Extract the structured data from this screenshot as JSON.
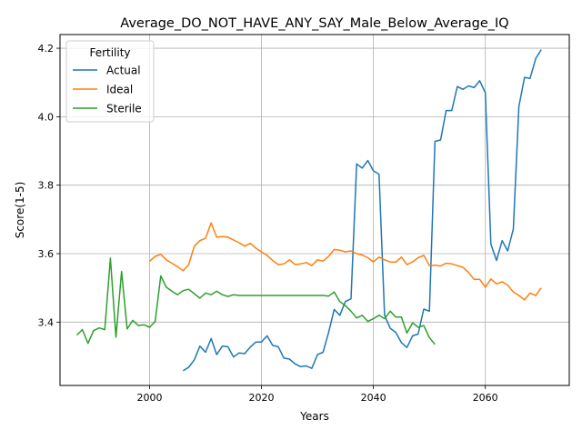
{
  "chart_data": {
    "type": "line",
    "title": "Average_DO_NOT_HAVE_ANY_SAY_Male_Below_Average_IQ",
    "xlabel": "Years",
    "ylabel": "Score(1-5)",
    "xlim": [
      1984,
      2075
    ],
    "ylim": [
      3.215,
      4.24
    ],
    "x_ticks": [
      2000,
      2020,
      2040,
      2060
    ],
    "y_ticks": [
      3.4,
      3.6,
      3.8,
      4.0,
      4.2
    ],
    "grid": true,
    "legend": {
      "title": "Fertility",
      "position": "upper-left"
    },
    "series": [
      {
        "name": "Actual",
        "color": "#1f77b4",
        "x": [
          2006,
          2007,
          2008,
          2009,
          2010,
          2011,
          2012,
          2013,
          2014,
          2015,
          2016,
          2017,
          2018,
          2019,
          2020,
          2021,
          2022,
          2023,
          2024,
          2025,
          2026,
          2027,
          2028,
          2029,
          2030,
          2031,
          2032,
          2033,
          2034,
          2035,
          2036,
          2037,
          2038,
          2039,
          2040,
          2041,
          2042,
          2043,
          2044,
          2045,
          2046,
          2047,
          2048,
          2049,
          2050,
          2051,
          2052,
          2053,
          2054,
          2055,
          2056,
          2057,
          2058,
          2059,
          2060,
          2061,
          2062,
          2063,
          2064,
          2065,
          2066,
          2067,
          2068,
          2069,
          2070
        ],
        "y": [
          3.258,
          3.268,
          3.29,
          3.33,
          3.312,
          3.352,
          3.305,
          3.33,
          3.328,
          3.298,
          3.31,
          3.308,
          3.327,
          3.342,
          3.342,
          3.36,
          3.332,
          3.328,
          3.295,
          3.292,
          3.278,
          3.27,
          3.272,
          3.265,
          3.305,
          3.312,
          3.37,
          3.437,
          3.42,
          3.46,
          3.468,
          3.862,
          3.85,
          3.872,
          3.842,
          3.832,
          3.42,
          3.382,
          3.37,
          3.34,
          3.326,
          3.36,
          3.365,
          3.438,
          3.432,
          3.928,
          3.932,
          4.018,
          4.018,
          4.088,
          4.08,
          4.09,
          4.085,
          4.105,
          4.07,
          3.628,
          3.58,
          3.638,
          3.608,
          3.672,
          4.03,
          4.115,
          4.112,
          4.17,
          4.196
        ]
      },
      {
        "name": "Ideal",
        "color": "#ff7f0e",
        "x": [
          2000,
          2001,
          2002,
          2003,
          2004,
          2005,
          2006,
          2007,
          2008,
          2009,
          2010,
          2011,
          2012,
          2013,
          2014,
          2015,
          2016,
          2017,
          2018,
          2019,
          2020,
          2021,
          2022,
          2023,
          2024,
          2025,
          2026,
          2027,
          2028,
          2029,
          2030,
          2031,
          2032,
          2033,
          2034,
          2035,
          2036,
          2037,
          2038,
          2039,
          2040,
          2041,
          2042,
          2043,
          2044,
          2045,
          2046,
          2047,
          2048,
          2049,
          2050,
          2051,
          2052,
          2053,
          2054,
          2055,
          2056,
          2057,
          2058,
          2059,
          2060,
          2061,
          2062,
          2063,
          2064,
          2065,
          2066,
          2067,
          2068,
          2069,
          2070
        ],
        "y": [
          3.578,
          3.592,
          3.598,
          3.582,
          3.572,
          3.562,
          3.55,
          3.568,
          3.622,
          3.638,
          3.645,
          3.69,
          3.648,
          3.65,
          3.648,
          3.64,
          3.632,
          3.622,
          3.63,
          3.616,
          3.605,
          3.595,
          3.58,
          3.568,
          3.57,
          3.582,
          3.568,
          3.57,
          3.574,
          3.565,
          3.582,
          3.578,
          3.592,
          3.612,
          3.61,
          3.605,
          3.608,
          3.6,
          3.596,
          3.588,
          3.576,
          3.59,
          3.582,
          3.576,
          3.575,
          3.59,
          3.568,
          3.576,
          3.588,
          3.595,
          3.565,
          3.566,
          3.564,
          3.572,
          3.57,
          3.565,
          3.56,
          3.545,
          3.525,
          3.525,
          3.502,
          3.526,
          3.512,
          3.518,
          3.508,
          3.488,
          3.478,
          3.465,
          3.485,
          3.478,
          3.5
        ]
      },
      {
        "name": "Sterile",
        "color": "#2ca02c",
        "x": [
          1987,
          1988,
          1989,
          1990,
          1991,
          1992,
          1993,
          1994,
          1995,
          1996,
          1997,
          1998,
          1999,
          2000,
          2001,
          2002,
          2003,
          2004,
          2005,
          2006,
          2007,
          2008,
          2009,
          2010,
          2011,
          2012,
          2013,
          2014,
          2015,
          2016,
          2017,
          2018,
          2019,
          2020,
          2021,
          2022,
          2023,
          2024,
          2025,
          2026,
          2027,
          2028,
          2029,
          2030,
          2031,
          2032,
          2033,
          2034,
          2035,
          2036,
          2037,
          2038,
          2039,
          2040,
          2041,
          2042,
          2043,
          2044,
          2045,
          2046,
          2047,
          2048,
          2049,
          2050,
          2051
        ],
        "y": [
          3.362,
          3.378,
          3.338,
          3.375,
          3.383,
          3.378,
          3.587,
          3.356,
          3.548,
          3.38,
          3.405,
          3.39,
          3.392,
          3.385,
          3.402,
          3.535,
          3.502,
          3.49,
          3.48,
          3.492,
          3.496,
          3.483,
          3.47,
          3.485,
          3.48,
          3.49,
          3.48,
          3.475,
          3.48,
          3.478,
          3.478,
          3.478,
          3.478,
          3.478,
          3.478,
          3.478,
          3.478,
          3.478,
          3.478,
          3.478,
          3.478,
          3.478,
          3.478,
          3.478,
          3.478,
          3.476,
          3.488,
          3.46,
          3.448,
          3.432,
          3.412,
          3.42,
          3.402,
          3.41,
          3.42,
          3.41,
          3.432,
          3.415,
          3.415,
          3.368,
          3.398,
          3.385,
          3.39,
          3.355,
          3.335
        ]
      }
    ]
  }
}
